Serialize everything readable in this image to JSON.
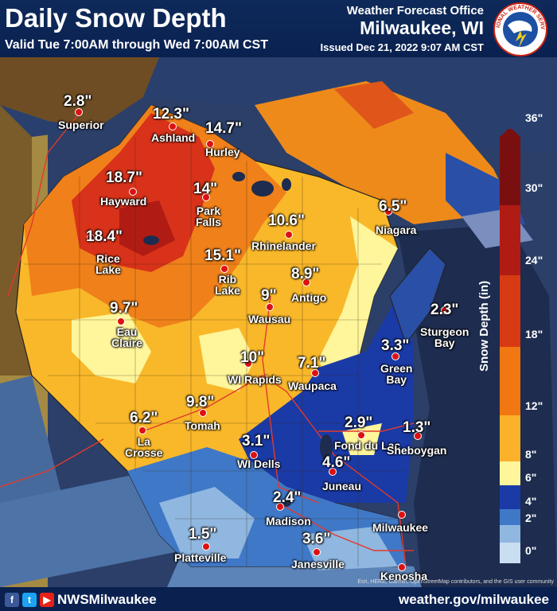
{
  "header": {
    "title": "Daily Snow Depth",
    "valid": "Valid Tue 7:00AM through Wed 7:00AM CST",
    "office_line1": "Weather Forecast Office",
    "office_line2": "Milwaukee, WI",
    "issued": "Issued Dec 21, 2022 9:07 AM CST",
    "logo_text": "NATIONAL WEATHER SERVICE"
  },
  "footer": {
    "social_handle": "NWSMilwaukee",
    "website": "weather.gov/milwaukee",
    "credit": "Esri, HERE, Garmin, OpenStreetMap contributors, and the GIS user community",
    "icons": [
      "facebook-icon",
      "twitter-icon",
      "youtube-icon"
    ]
  },
  "legend": {
    "title": "Snow Depth (in)",
    "ticks": [
      "36\"",
      "30\"",
      "24\"",
      "18\"",
      "12\"",
      "8\"",
      "6\"",
      "4\"",
      "2\"",
      "0\""
    ],
    "colors": [
      "#7a0f0f",
      "#b01c14",
      "#d83a14",
      "#ee6a10",
      "#f79a20",
      "#fbc02d",
      "#fff59a",
      "#1a3aa6",
      "#3f78c7",
      "#8fb7e0",
      "#c9def1"
    ]
  },
  "observations": [
    {
      "id": "superior",
      "value": "2.8\"",
      "city": "Superior"
    },
    {
      "id": "ashland",
      "value": "12.3\"",
      "city": "Ashland"
    },
    {
      "id": "hurley",
      "value": "14.7\"",
      "city": "Hurley"
    },
    {
      "id": "hayward",
      "value": "18.7\"",
      "city": "Hayward"
    },
    {
      "id": "park-falls",
      "value": "14\"",
      "city": "Park Falls"
    },
    {
      "id": "rhinelander",
      "value": "10.6\"",
      "city": "Rhinelander"
    },
    {
      "id": "niagara",
      "value": "6.5\"",
      "city": "Niagara"
    },
    {
      "id": "rice-lake",
      "value": "18.4\"",
      "city": "Rice Lake"
    },
    {
      "id": "rib-lake",
      "value": "15.1\"",
      "city": "Rib Lake"
    },
    {
      "id": "antigo",
      "value": "8.9\"",
      "city": "Antigo"
    },
    {
      "id": "wausau",
      "value": "9\"",
      "city": "Wausau"
    },
    {
      "id": "eau-claire",
      "value": "9.7\"",
      "city": "Eau Claire"
    },
    {
      "id": "sturgeon-bay",
      "value": "2.3\"",
      "city": "Sturgeon Bay"
    },
    {
      "id": "green-bay",
      "value": "3.3\"",
      "city": "Green Bay"
    },
    {
      "id": "wi-rapids",
      "value": "10\"",
      "city": "WI Rapids"
    },
    {
      "id": "waupaca",
      "value": "7.1\"",
      "city": "Waupaca"
    },
    {
      "id": "tomah",
      "value": "9.8\"",
      "city": "Tomah"
    },
    {
      "id": "la-crosse",
      "value": "6.2\"",
      "city": "La Crosse"
    },
    {
      "id": "fond-du-lac",
      "value": "2.9\"",
      "city": "Fond du Lac"
    },
    {
      "id": "sheboygan",
      "value": "1.3\"",
      "city": "Sheboygan"
    },
    {
      "id": "wi-dells",
      "value": "3.1\"",
      "city": "WI Dells"
    },
    {
      "id": "juneau",
      "value": "4.6\"",
      "city": "Juneau"
    },
    {
      "id": "madison",
      "value": "2.4\"",
      "city": "Madison"
    },
    {
      "id": "milwaukee",
      "value": "",
      "city": "Milwaukee"
    },
    {
      "id": "platteville",
      "value": "1.5\"",
      "city": "Platteville"
    },
    {
      "id": "janesville",
      "value": "3.6\"",
      "city": "Janesville"
    },
    {
      "id": "kenosha",
      "value": "",
      "city": "Kenosha"
    }
  ]
}
